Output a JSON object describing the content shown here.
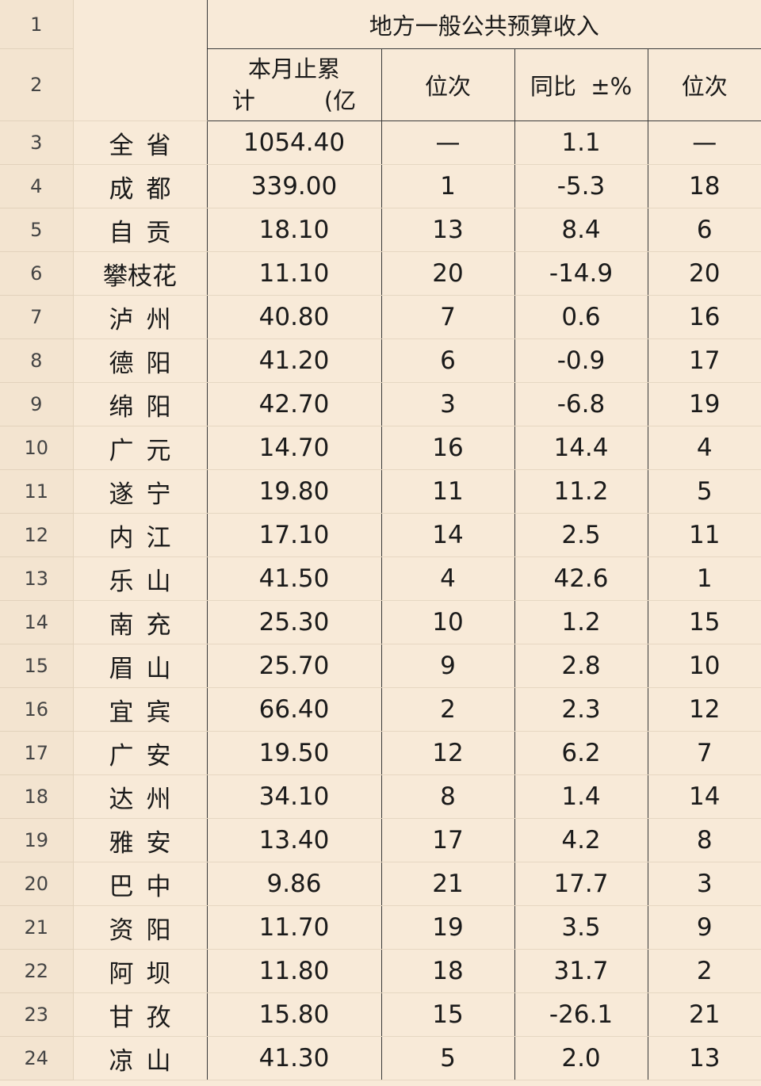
{
  "header": {
    "group_title": "地方一般公共预算收入",
    "col_cumulative_line1": "本月止累",
    "col_cumulative_line2": "计　　　(亿",
    "col_rank1": "位次",
    "col_yoy": "同比  ±%",
    "col_rank2": "位次"
  },
  "row_numbers": [
    "1",
    "2",
    "3",
    "4",
    "5",
    "6",
    "7",
    "8",
    "9",
    "10",
    "11",
    "12",
    "13",
    "14",
    "15",
    "16",
    "17",
    "18",
    "19",
    "20",
    "21",
    "22",
    "23",
    "24"
  ],
  "rows": [
    {
      "name": "全省",
      "value": "1054.40",
      "rank1": "—",
      "yoy": "1.1",
      "rank2": "—"
    },
    {
      "name": "成都",
      "value": "339.00",
      "rank1": "1",
      "yoy": "-5.3",
      "rank2": "18"
    },
    {
      "name": "自贡",
      "value": "18.10",
      "rank1": "13",
      "yoy": "8.4",
      "rank2": "6"
    },
    {
      "name": "攀枝花",
      "value": "11.10",
      "rank1": "20",
      "yoy": "-14.9",
      "rank2": "20"
    },
    {
      "name": "泸州",
      "value": "40.80",
      "rank1": "7",
      "yoy": "0.6",
      "rank2": "16"
    },
    {
      "name": "德阳",
      "value": "41.20",
      "rank1": "6",
      "yoy": "-0.9",
      "rank2": "17"
    },
    {
      "name": "绵阳",
      "value": "42.70",
      "rank1": "3",
      "yoy": "-6.8",
      "rank2": "19"
    },
    {
      "name": "广元",
      "value": "14.70",
      "rank1": "16",
      "yoy": "14.4",
      "rank2": "4"
    },
    {
      "name": "遂宁",
      "value": "19.80",
      "rank1": "11",
      "yoy": "11.2",
      "rank2": "5"
    },
    {
      "name": "内江",
      "value": "17.10",
      "rank1": "14",
      "yoy": "2.5",
      "rank2": "11"
    },
    {
      "name": "乐山",
      "value": "41.50",
      "rank1": "4",
      "yoy": "42.6",
      "rank2": "1"
    },
    {
      "name": "南充",
      "value": "25.30",
      "rank1": "10",
      "yoy": "1.2",
      "rank2": "15"
    },
    {
      "name": "眉山",
      "value": "25.70",
      "rank1": "9",
      "yoy": "2.8",
      "rank2": "10"
    },
    {
      "name": "宜宾",
      "value": "66.40",
      "rank1": "2",
      "yoy": "2.3",
      "rank2": "12"
    },
    {
      "name": "广安",
      "value": "19.50",
      "rank1": "12",
      "yoy": "6.2",
      "rank2": "7"
    },
    {
      "name": "达州",
      "value": "34.10",
      "rank1": "8",
      "yoy": "1.4",
      "rank2": "14"
    },
    {
      "name": "雅安",
      "value": "13.40",
      "rank1": "17",
      "yoy": "4.2",
      "rank2": "8"
    },
    {
      "name": "巴中",
      "value": "9.86",
      "rank1": "21",
      "yoy": "17.7",
      "rank2": "3"
    },
    {
      "name": "资阳",
      "value": "11.70",
      "rank1": "19",
      "yoy": "3.5",
      "rank2": "9"
    },
    {
      "name": "阿坝",
      "value": "11.80",
      "rank1": "18",
      "yoy": "31.7",
      "rank2": "2"
    },
    {
      "name": "甘孜",
      "value": "15.80",
      "rank1": "15",
      "yoy": "-26.1",
      "rank2": "21"
    },
    {
      "name": "凉山",
      "value": "41.30",
      "rank1": "5",
      "yoy": "2.0",
      "rank2": "13"
    }
  ]
}
